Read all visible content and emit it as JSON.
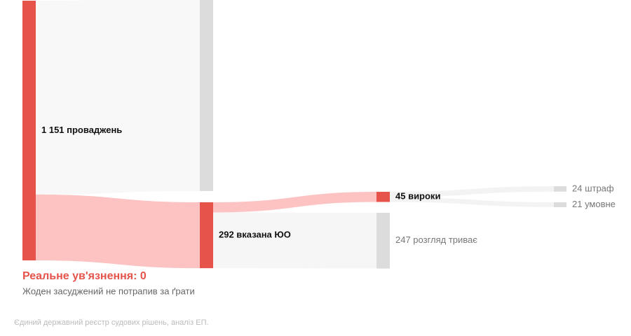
{
  "chart_data": {
    "type": "sankey",
    "nodes": [
      {
        "label": "1 151 проваджень",
        "value": 1151,
        "color": "#e5534b"
      },
      {
        "label": null,
        "value": 859,
        "color": "#dcdcdc"
      },
      {
        "label": "292 вказана ЮО",
        "value": 292,
        "color": "#e5534b"
      },
      {
        "label": "45 вироки",
        "value": 45,
        "color": "#e5534b"
      },
      {
        "label": "247 розгляд триває",
        "value": 247,
        "color": "#dcdcdc"
      },
      {
        "label": "24 штраф",
        "value": 24,
        "color": "#dcdcdc"
      },
      {
        "label": "21 умовне",
        "value": 21,
        "color": "#dcdcdc"
      }
    ],
    "links": [
      {
        "source": 0,
        "target": 1,
        "value": 859,
        "color": "#f8f8f8"
      },
      {
        "source": 0,
        "target": 2,
        "value": 292,
        "color": "#fdc2c2"
      },
      {
        "source": 2,
        "target": 3,
        "value": 45,
        "color": "#fdc2c2"
      },
      {
        "source": 2,
        "target": 4,
        "value": 247,
        "color": "#f6f6f6"
      },
      {
        "source": 3,
        "target": 5,
        "value": 24,
        "color": "#f3f3f3"
      },
      {
        "source": 3,
        "target": 6,
        "value": 21,
        "color": "#f3f3f3"
      }
    ],
    "annotation_title": "Реальне ув'язнення: 0",
    "annotation_text": "Жоден засуджений не потрапив за ґрати",
    "source": "Єдиний державний реєстр судових рішень, аналіз ЕП."
  }
}
